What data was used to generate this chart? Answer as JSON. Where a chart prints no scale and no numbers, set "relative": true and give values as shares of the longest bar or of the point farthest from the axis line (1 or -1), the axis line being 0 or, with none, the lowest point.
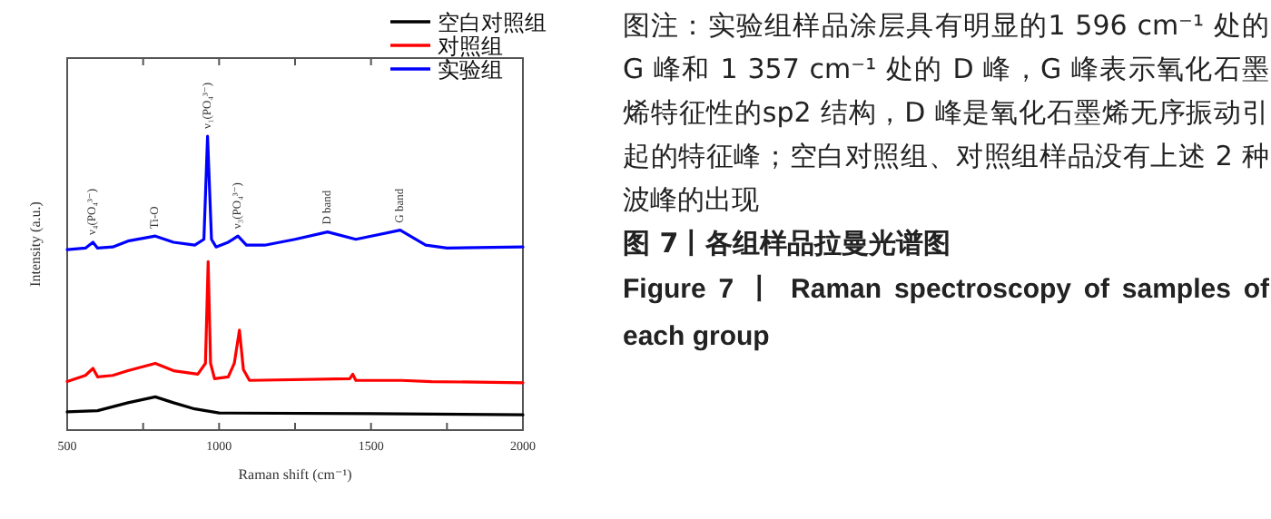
{
  "chart_data": {
    "type": "line",
    "relative": true,
    "title": "图 7丨各组样品拉曼光谱图",
    "subtitle": "Figure 7 丨 Raman spectroscopy of samples of each group",
    "xlabel": "Raman shift (cm⁻¹)",
    "ylabel": "Intensity (a.u.)",
    "xlim": [
      500,
      2000
    ],
    "xticks": [
      500,
      {
        "value": 750,
        "label": null
      },
      1000,
      {
        "value": 1250,
        "label": null
      },
      1500,
      {
        "value": 1750,
        "label": null
      },
      2000
    ],
    "legend": "top right",
    "series": [
      {
        "name": "空白对照组",
        "color": "#000000",
        "x": [
          500,
          600,
          700,
          790,
          850,
          920,
          1000,
          1500,
          2000
        ],
        "values": [
          0.062,
          0.066,
          0.093,
          0.113,
          0.093,
          0.072,
          0.058,
          0.056,
          0.052
        ]
      },
      {
        "name": "对照组",
        "color": "#ff0000",
        "x": [
          500,
          560,
          585,
          600,
          650,
          700,
          790,
          850,
          930,
          955,
          964,
          972,
          985,
          1030,
          1050,
          1067,
          1080,
          1100,
          1430,
          1440,
          1450,
          1600,
          1700,
          2000
        ],
        "values": [
          0.165,
          0.186,
          0.21,
          0.181,
          0.186,
          0.202,
          0.227,
          0.202,
          0.19,
          0.227,
          0.573,
          0.227,
          0.175,
          0.181,
          0.227,
          0.34,
          0.206,
          0.169,
          0.175,
          0.19,
          0.169,
          0.169,
          0.165,
          0.161
        ]
      },
      {
        "name": "实验组",
        "color": "#0000ff",
        "x": [
          500,
          560,
          585,
          600,
          650,
          700,
          790,
          850,
          920,
          950,
          962,
          975,
          990,
          1030,
          1062,
          1090,
          1150,
          1250,
          1357,
          1450,
          1596,
          1680,
          1750,
          2000
        ],
        "values": [
          0.614,
          0.619,
          0.639,
          0.619,
          0.623,
          0.643,
          0.66,
          0.639,
          0.629,
          0.649,
          1,
          0.649,
          0.623,
          0.639,
          0.66,
          0.629,
          0.629,
          0.649,
          0.674,
          0.649,
          0.68,
          0.629,
          0.619,
          0.623
        ]
      }
    ],
    "annotations": [
      "图注：实验组样品涂层具有明显的1 596 cm⁻¹ 处的 G 峰和 1 357 cm⁻¹ 处的 D 峰，G 峰表示氧化石墨烯特征性的sp2 结构，D 峰是氧化石墨烯无序振动引起的特征峰；空白对照组、对照组样品没有上述 2 种波峰的出现",
      {
        "text": "ν₄(PO₄³⁻)",
        "x": 585,
        "y": 0.639
      },
      {
        "text": "Ti-O",
        "x": 790,
        "y": 0.66
      },
      {
        "text": "ν₁(PO₄³⁻)",
        "x": 962,
        "y": 1
      },
      {
        "text": "ν₃(PO₄³⁻)",
        "x": 1062,
        "y": 0.66
      },
      {
        "text": "D band",
        "x": 1357,
        "y": 0.674
      },
      {
        "text": "G band",
        "x": 1596,
        "y": 0.68
      }
    ]
  }
}
